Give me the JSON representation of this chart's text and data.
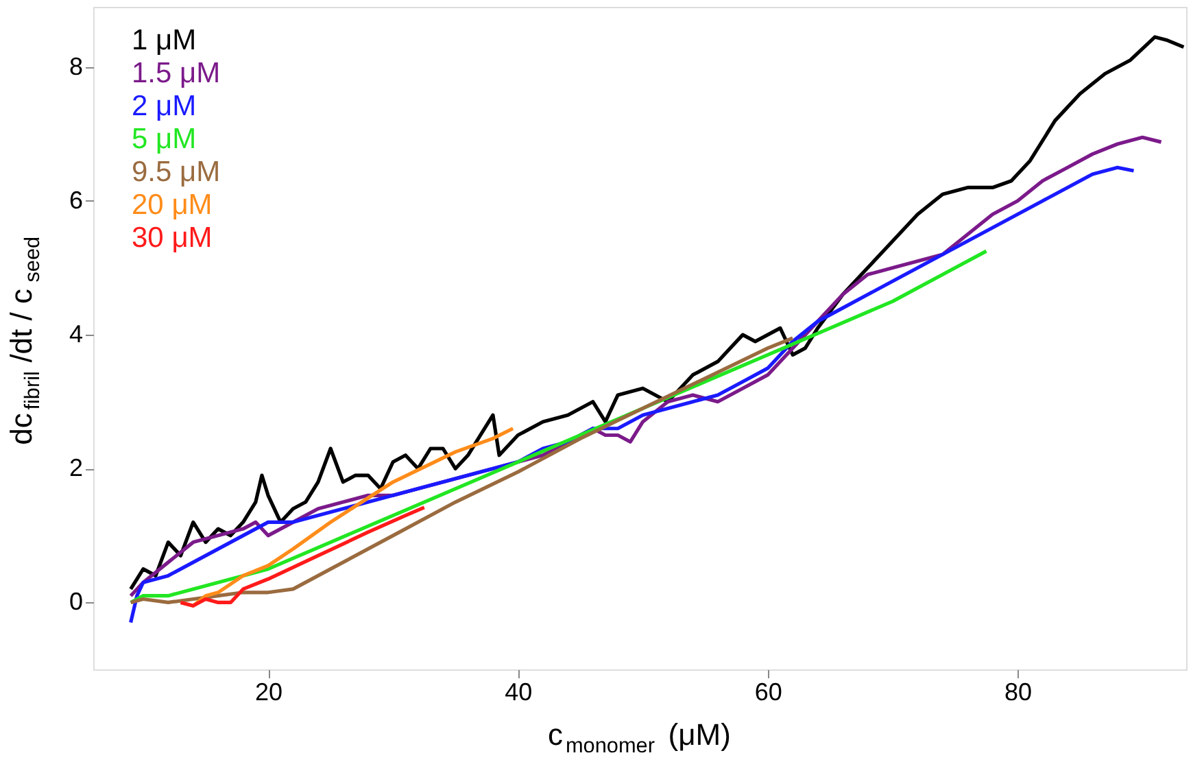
{
  "chart_data": {
    "type": "line",
    "xlabel": "c$_{monomer}$ (μM)",
    "ylabel": "dc$_{fibril}$/dt / c$_{seed}$",
    "xlim": [
      6,
      93.5
    ],
    "ylim": [
      -1,
      8.9
    ],
    "xticks": [
      20,
      40,
      60,
      80
    ],
    "yticks": [
      0,
      2,
      4,
      6,
      8
    ],
    "grid": false,
    "legend": "top left",
    "marker": "none",
    "line_style": "solid",
    "series": [
      {
        "name": "1 μM",
        "color": "#000000",
        "x": [
          9,
          10,
          11,
          12,
          13,
          14,
          15,
          16,
          17,
          18,
          19,
          19.5,
          20,
          21,
          22,
          23,
          24,
          25,
          26,
          27,
          28,
          29,
          30,
          31,
          32,
          33,
          34,
          35,
          36,
          37,
          38,
          38.5,
          40,
          42,
          44,
          46,
          47,
          48,
          50,
          52,
          54,
          56,
          58,
          59,
          60,
          61,
          62,
          63,
          64,
          66,
          68,
          70,
          72,
          74,
          76,
          78,
          79.5,
          81,
          83,
          85,
          87,
          89,
          91,
          92,
          93.3
        ],
        "values": [
          0.2,
          0.5,
          0.4,
          0.9,
          0.7,
          1.2,
          0.9,
          1.1,
          1.0,
          1.2,
          1.5,
          1.9,
          1.6,
          1.2,
          1.4,
          1.5,
          1.8,
          2.3,
          1.8,
          1.9,
          1.9,
          1.7,
          2.1,
          2.2,
          2.0,
          2.3,
          2.3,
          2.0,
          2.2,
          2.5,
          2.8,
          2.2,
          2.5,
          2.7,
          2.8,
          3.0,
          2.7,
          3.1,
          3.2,
          3.0,
          3.4,
          3.6,
          4.0,
          3.9,
          4.0,
          4.1,
          3.7,
          3.8,
          4.1,
          4.6,
          5.0,
          5.4,
          5.8,
          6.1,
          6.2,
          6.2,
          6.3,
          6.6,
          7.2,
          7.6,
          7.9,
          8.1,
          8.45,
          8.4,
          8.3
        ]
      },
      {
        "name": "1.5 μM",
        "color": "#7b1a8a",
        "x": [
          9,
          10,
          12,
          14,
          16,
          18,
          19,
          20,
          22,
          24,
          26,
          28,
          30,
          32,
          34,
          36,
          38,
          40,
          42,
          44,
          46,
          47,
          48,
          49,
          50,
          52,
          54,
          56,
          58,
          60,
          62,
          64,
          66,
          68,
          70,
          72,
          74,
          76,
          78,
          80,
          82,
          84,
          86,
          88,
          90,
          91.5
        ],
        "values": [
          0.1,
          0.3,
          0.6,
          0.9,
          1.0,
          1.1,
          1.2,
          1.0,
          1.2,
          1.4,
          1.5,
          1.6,
          1.6,
          1.7,
          1.8,
          1.9,
          2.0,
          2.1,
          2.2,
          2.4,
          2.6,
          2.5,
          2.5,
          2.4,
          2.7,
          3.0,
          3.1,
          3.0,
          3.2,
          3.4,
          3.8,
          4.2,
          4.6,
          4.9,
          5.0,
          5.1,
          5.2,
          5.5,
          5.8,
          6.0,
          6.3,
          6.5,
          6.7,
          6.85,
          6.95,
          6.88
        ]
      },
      {
        "name": "2 μM",
        "color": "#1a1aff",
        "x": [
          9,
          9.5,
          10,
          12,
          14,
          16,
          18,
          20,
          22,
          24,
          26,
          28,
          30,
          32,
          34,
          36,
          38,
          40,
          42,
          44,
          46,
          48,
          50,
          52,
          54,
          56,
          58,
          60,
          62,
          64,
          66,
          68,
          70,
          72,
          74,
          76,
          78,
          80,
          82,
          84,
          86,
          88,
          89.3
        ],
        "values": [
          -0.3,
          0.1,
          0.3,
          0.4,
          0.6,
          0.8,
          1.0,
          1.2,
          1.2,
          1.3,
          1.4,
          1.5,
          1.6,
          1.7,
          1.8,
          1.9,
          2.0,
          2.1,
          2.3,
          2.4,
          2.6,
          2.6,
          2.8,
          2.9,
          3.0,
          3.1,
          3.3,
          3.5,
          3.9,
          4.2,
          4.4,
          4.6,
          4.8,
          5.0,
          5.2,
          5.4,
          5.6,
          5.8,
          6.0,
          6.2,
          6.4,
          6.5,
          6.45
        ]
      },
      {
        "name": "5 μM",
        "color": "#22e622",
        "x": [
          9,
          10,
          12,
          14,
          16,
          18,
          20,
          25,
          30,
          35,
          40,
          45,
          50,
          55,
          60,
          65,
          70,
          75,
          77.5
        ],
        "values": [
          0,
          0.1,
          0.1,
          0.2,
          0.3,
          0.4,
          0.5,
          0.9,
          1.3,
          1.7,
          2.1,
          2.5,
          2.9,
          3.3,
          3.7,
          4.1,
          4.5,
          5.0,
          5.25
        ]
      },
      {
        "name": "9.5 μM",
        "color": "#9a6b3f",
        "x": [
          9,
          10,
          12,
          14,
          16,
          18,
          20,
          22,
          25,
          30,
          35,
          40,
          45,
          50,
          55,
          60,
          62
        ],
        "values": [
          0,
          0.05,
          0,
          0.05,
          0.1,
          0.15,
          0.15,
          0.2,
          0.5,
          1.0,
          1.5,
          1.95,
          2.45,
          2.9,
          3.35,
          3.8,
          3.95
        ]
      },
      {
        "name": "20 μM",
        "color": "#ff8c1a",
        "x": [
          13,
          14,
          15,
          16,
          18,
          20,
          22,
          25,
          30,
          35,
          38,
          39.6
        ],
        "values": [
          0,
          -0.05,
          0.1,
          0.15,
          0.4,
          0.55,
          0.8,
          1.2,
          1.8,
          2.25,
          2.45,
          2.6
        ]
      },
      {
        "name": "30 μM",
        "color": "#ff1a1a",
        "x": [
          13,
          14,
          15,
          16,
          17,
          18,
          20,
          24,
          28,
          31,
          32.5
        ],
        "values": [
          0,
          -0.05,
          0.05,
          0,
          0,
          0.2,
          0.35,
          0.7,
          1.05,
          1.3,
          1.42
        ]
      }
    ]
  }
}
